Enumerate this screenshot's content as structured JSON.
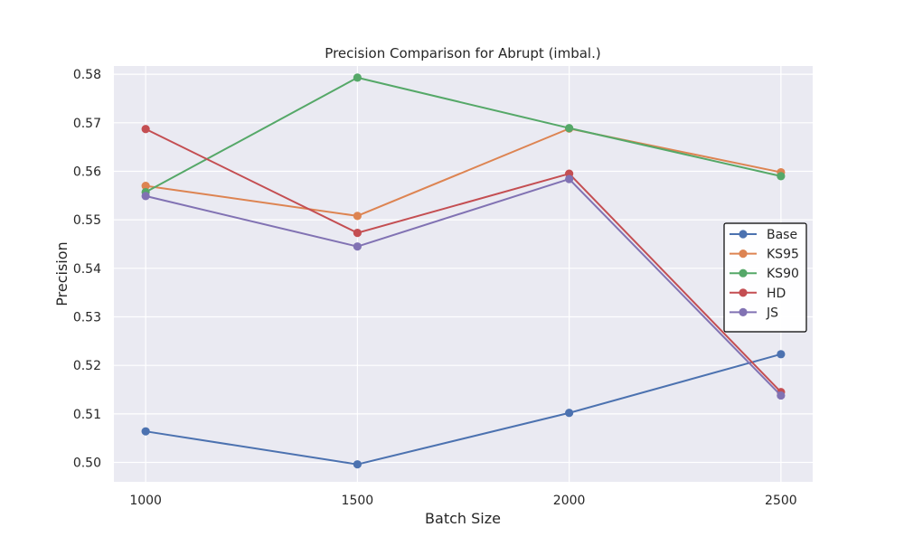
{
  "chart_data": {
    "type": "line",
    "title": "Precision Comparison for Abrupt (imbal.)",
    "xlabel": "Batch Size",
    "ylabel": "Precision",
    "x": [
      1000,
      1500,
      2000,
      2500
    ],
    "x_tick_labels": [
      "1000",
      "1500",
      "2000",
      "2500"
    ],
    "y_ticks": [
      0.5,
      0.51,
      0.52,
      0.53,
      0.54,
      0.55,
      0.56,
      0.57,
      0.58
    ],
    "y_tick_labels": [
      "0.50",
      "0.51",
      "0.52",
      "0.53",
      "0.54",
      "0.55",
      "0.56",
      "0.57",
      "0.58"
    ],
    "xlim": [
      925,
      2575
    ],
    "ylim": [
      0.496,
      0.5817
    ],
    "grid": true,
    "legend_position": "center-right",
    "background": "#EAEAF2",
    "series": [
      {
        "name": "Base",
        "color": "#4C72B0",
        "values": [
          0.5064,
          0.4996,
          0.5102,
          0.5223
        ]
      },
      {
        "name": "KS95",
        "color": "#DD8452",
        "values": [
          0.557,
          0.5508,
          0.5688,
          0.5598
        ]
      },
      {
        "name": "KS90",
        "color": "#55A868",
        "values": [
          0.5557,
          0.5793,
          0.5689,
          0.559
        ]
      },
      {
        "name": "HD",
        "color": "#C44E52",
        "values": [
          0.5687,
          0.5473,
          0.5595,
          0.5145
        ]
      },
      {
        "name": "JS",
        "color": "#8172B3",
        "values": [
          0.5549,
          0.5445,
          0.5584,
          0.5138
        ]
      }
    ]
  }
}
